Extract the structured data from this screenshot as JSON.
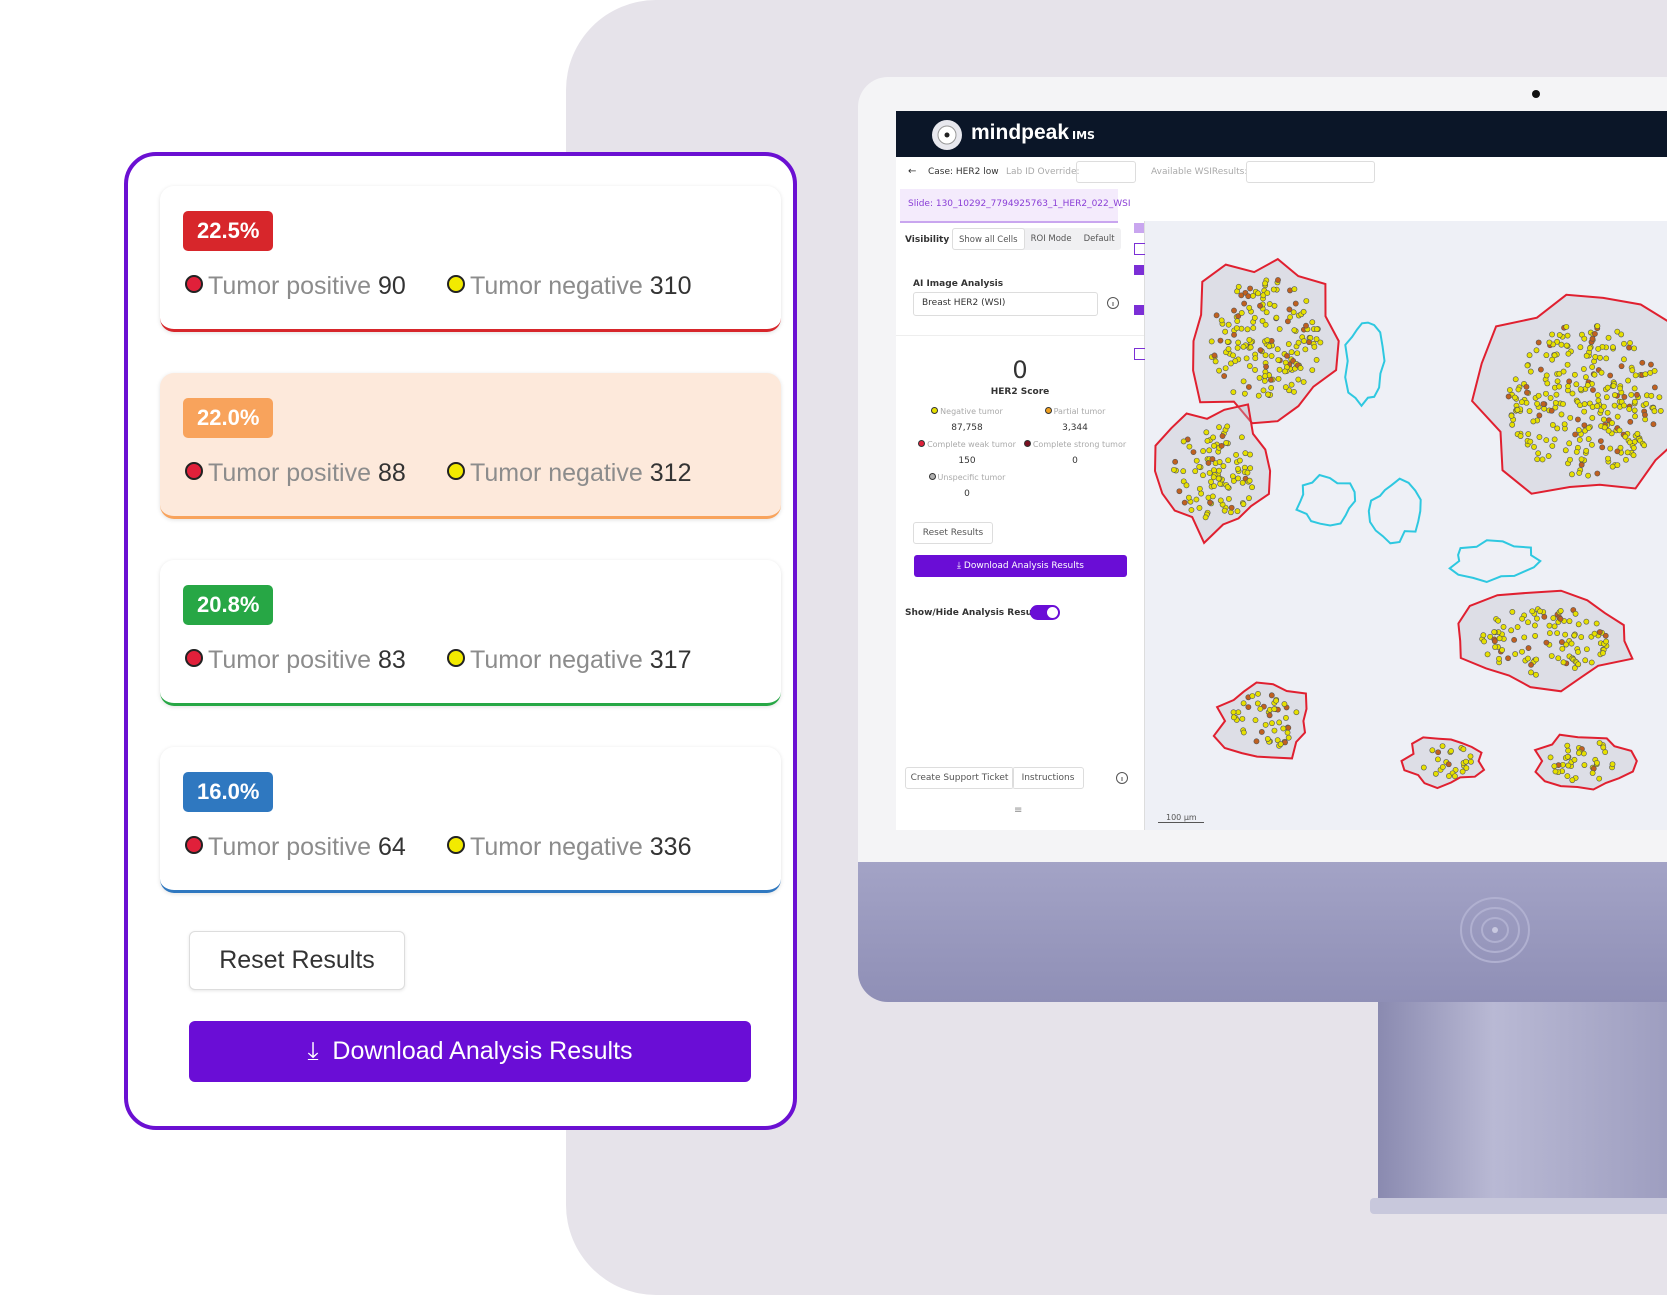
{
  "results_panel": {
    "cards": [
      {
        "percent": "22.5%",
        "color": "#d7262b",
        "positive_label": "Tumor positive",
        "positive_count": 90,
        "negative_label": "Tumor negative",
        "negative_count": 310
      },
      {
        "percent": "22.0%",
        "color": "#f8a35c",
        "background": "#fde9db",
        "positive_label": "Tumor positive",
        "positive_count": 88,
        "negative_label": "Tumor negative",
        "negative_count": 312
      },
      {
        "percent": "20.8%",
        "color": "#27a745",
        "positive_label": "Tumor positive",
        "positive_count": 83,
        "negative_label": "Tumor negative",
        "negative_count": 317
      },
      {
        "percent": "16.0%",
        "color": "#2f78c0",
        "positive_label": "Tumor positive",
        "positive_count": 64,
        "negative_label": "Tumor negative",
        "negative_count": 336
      }
    ],
    "reset_button": "Reset Results",
    "download_button": "Download Analysis Results"
  },
  "app": {
    "brand": "mindpeak",
    "brand_suffix": "IMS",
    "case": "Case: HER2 low",
    "lab_id_label": "Lab ID Override:",
    "wsi_label": "Available WSIResults:",
    "slide": "Slide: 130_10292_7794925763_1_HER2_022_WSI",
    "visibility_label": "Visibility :",
    "visibility_options": [
      "Show all Cells",
      "ROI Mode",
      "Default"
    ],
    "analysis_label": "AI Image Analysis",
    "analysis_select": "Breast HER2 (WSI)",
    "score": 0,
    "score_label": "HER2 Score",
    "classes": [
      {
        "name": "Negative tumor",
        "color": "#e6e000",
        "count": "87,758"
      },
      {
        "name": "Partial tumor",
        "color": "#f0a020",
        "count": "3,344"
      },
      {
        "name": "Complete weak tumor",
        "color": "#e0203a",
        "count": 150
      },
      {
        "name": "Complete strong tumor",
        "color": "#7a1020",
        "count": 0
      },
      {
        "name": "Unspecific tumor",
        "color": "#b0b0b0",
        "count": 0
      }
    ],
    "reset_button": "Reset Results",
    "download_button": "Download Analysis Results",
    "toggle_label": "Show/Hide Analysis Results :",
    "support_button": "Create Support Ticket",
    "instructions_button": "Instructions",
    "scale_bar": "100 µm"
  }
}
